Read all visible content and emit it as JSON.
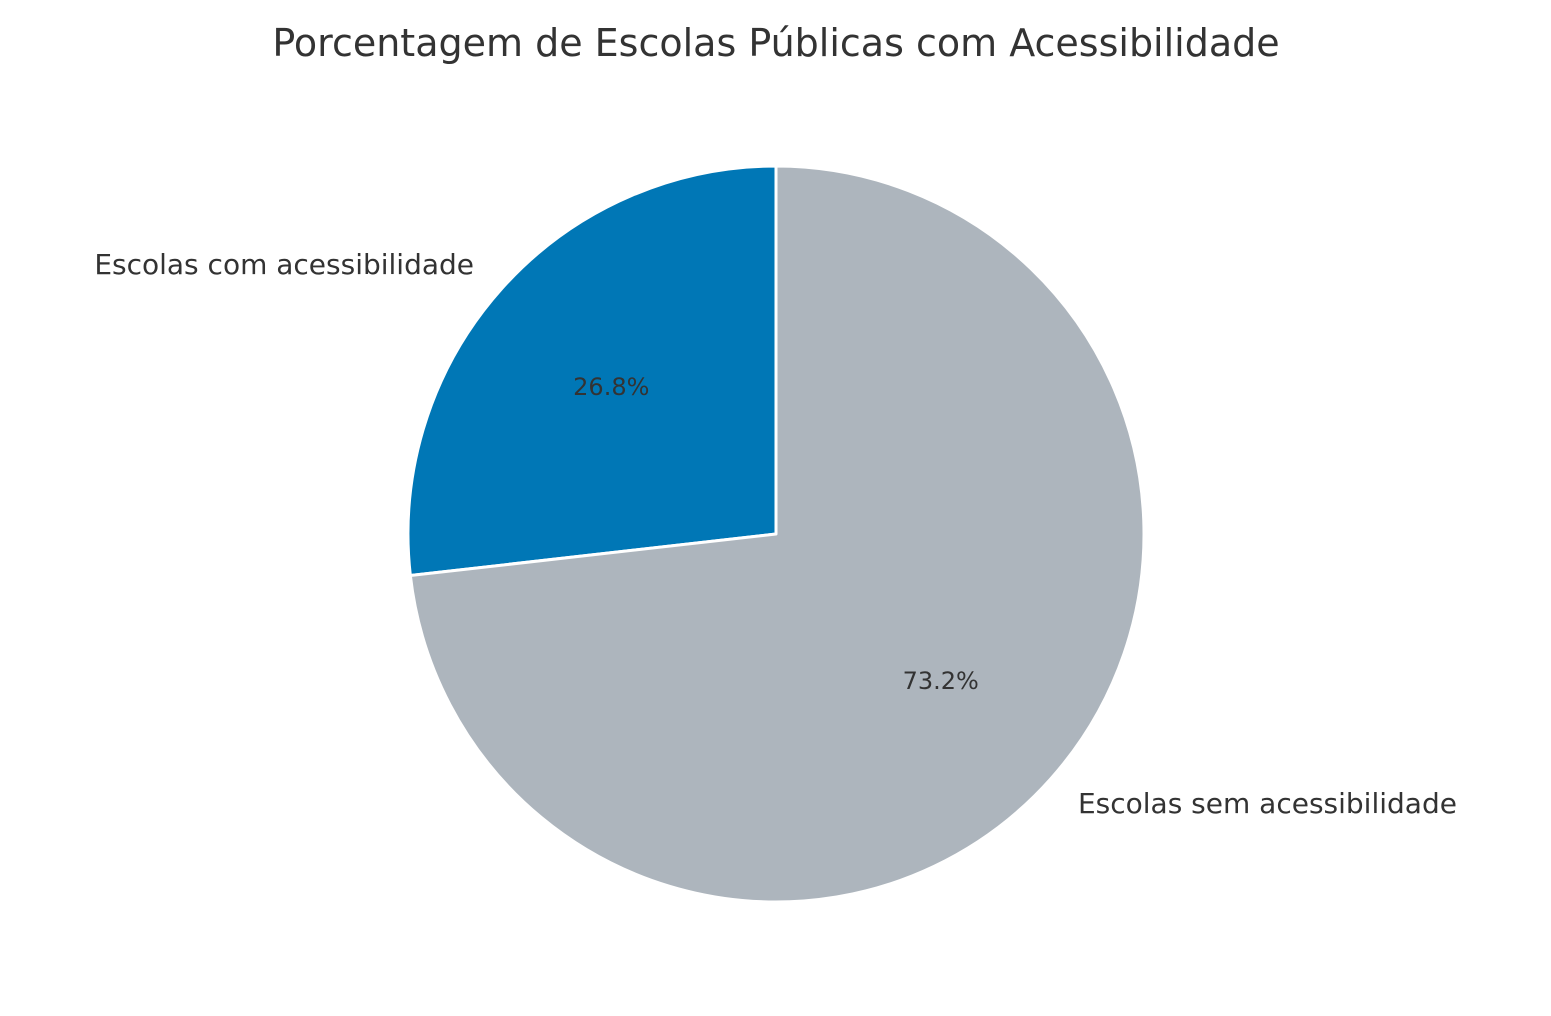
{
  "chart_data": {
    "type": "pie",
    "title": "Porcentagem de Escolas Públicas com Acessibilidade",
    "start_angle_deg": 90,
    "direction": "counterclockwise",
    "slices": [
      {
        "label": "Escolas com acessibilidade",
        "value": 26.8,
        "pct_label": "26.8%",
        "color": "#0077b6"
      },
      {
        "label": "Escolas sem acessibilidade",
        "value": 73.2,
        "pct_label": "73.2%",
        "color": "#adb5bd"
      }
    ],
    "edge_color": "#ffffff"
  }
}
